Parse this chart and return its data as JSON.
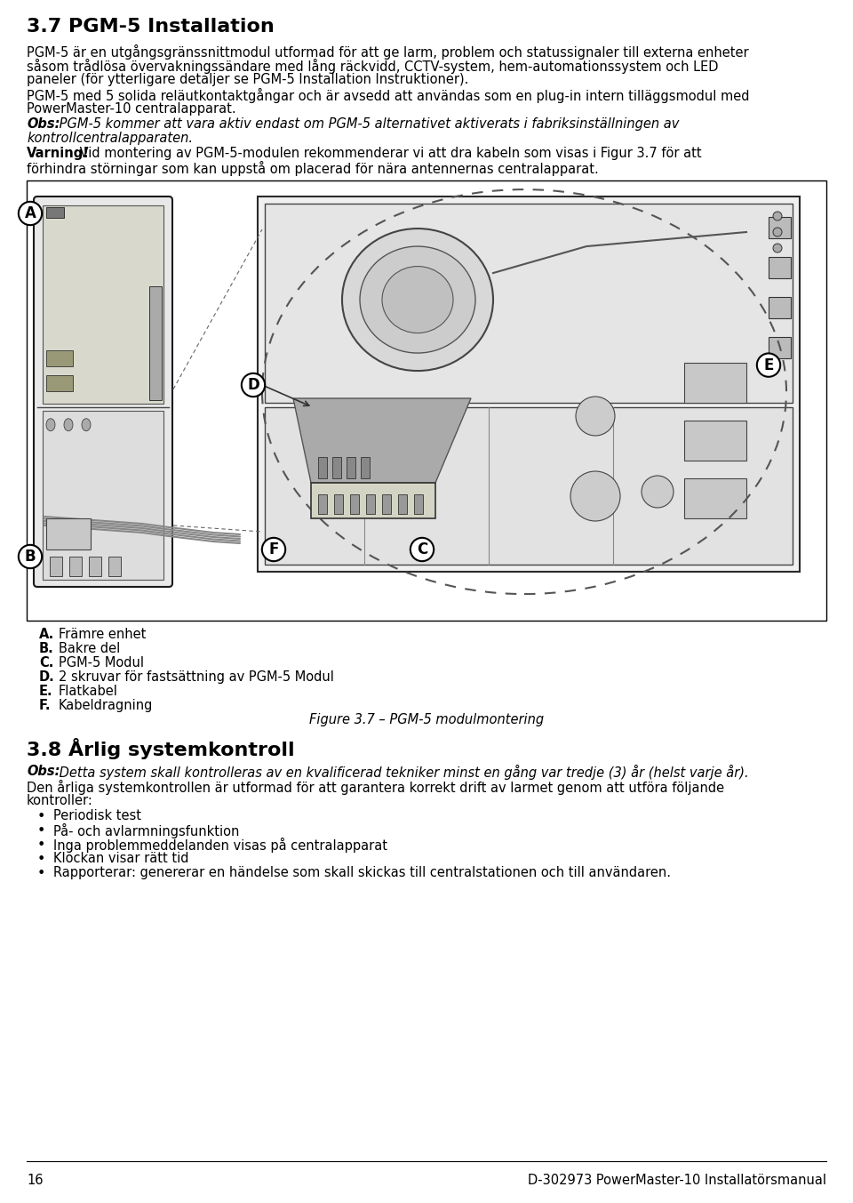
{
  "title1": "3.7 PGM-5 Installation",
  "p1l1": "PGM-5 är en utgångsgränssnittmodul utformad för att ge larm, problem och statussignaler till externa enheter",
  "p1l2": "såsom trådlösa övervakningssändare med lång räckvidd, CCTV-system, hem-automationssystem och LED",
  "p1l3": "paneler (för ytterligare detaljer se PGM-5 Installation Instruktioner).",
  "p2l1": "PGM-5 med 5 solida reläutkontaktgångar och är avsedd att användas som en plug-in intern tilläggsmodul med",
  "p2l2": "PowerMaster-10 centralapparat.",
  "obs1_label": "Obs:",
  "obs1l1": " PGM-5 kommer att vara aktiv endast om PGM-5 alternativet aktiverats i fabriksinställningen av",
  "obs1l2": "kontrollcentralapparaten.",
  "warn_label": "Varning!",
  "warnl1": " Vid montering av PGM-5-modulen rekommenderar vi att dra kabeln som visas i Figur 3.7 för att",
  "warnl2": "förhindra störningar som kan uppstå om placerad för nära antennernas centralapparat.",
  "labA": "A.",
  "labAtxt": "Främre enhet",
  "labB": "B.",
  "labBtxt": "Bakre del",
  "labC": "C.",
  "labCtxt": "PGM-5 Modul",
  "labD": "D.",
  "labDtxt": "2 skruvar för fastsättning av PGM-5 Modul",
  "labE": "E.",
  "labEtxt": "Flatkabel",
  "labF": "F.",
  "labFtxt": "Kabeldragning",
  "fig_caption": "Figure 3.7 – PGM-5 modulmontering",
  "title2": "3.8 Årlig systemkontroll",
  "obs2_label": "Obs:",
  "obs2l1": " Detta system skall kontrolleras av en kvalificerad tekniker minst en gång var tredje (3) år (helst varje år).",
  "p3l1": "Den årliga systemkontrollen är utformad för att garantera korrekt drift av larmet genom att utföra följande",
  "p3l2": "kontroller:",
  "b1": "Periodisk test",
  "b2": "På- och avlarmningsfunktion",
  "b3": "Inga problemmeddelanden visas på centralapparat",
  "b4": "Klockan visar rätt tid",
  "b5": "Rapporterar: genererar en händelse som skall skickas till centralstationen och till användaren.",
  "footer_l": "16",
  "footer_r": "D-302973 PowerMaster-10 Installatörsmanual"
}
